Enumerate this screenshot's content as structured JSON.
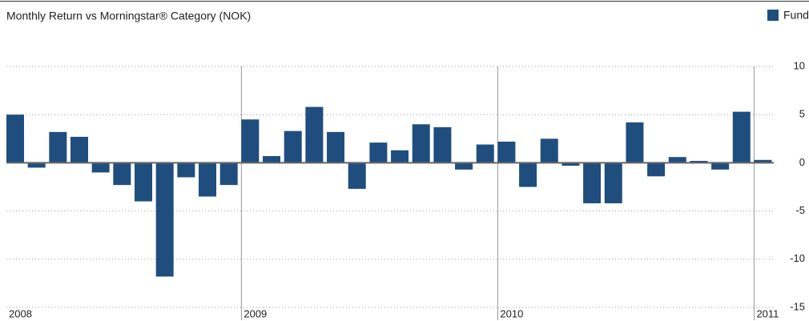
{
  "chart_data": {
    "type": "bar",
    "title": "Monthly Return  vs  Morningstar® Category (NOK)",
    "series": [
      {
        "name": "Fund",
        "color": "#1f4e7e",
        "values": [
          5.0,
          -0.5,
          3.2,
          2.7,
          -1.0,
          -2.3,
          -4.0,
          -11.8,
          -1.5,
          -3.5,
          -2.3,
          4.5,
          0.7,
          3.3,
          5.8,
          3.2,
          -2.7,
          2.1,
          1.3,
          4.0,
          3.7,
          -0.7,
          1.9,
          2.2,
          -2.5,
          2.5,
          -0.3,
          -4.2,
          -4.2,
          4.2,
          -1.4,
          0.6,
          0.2,
          -0.7,
          5.3,
          0.3
        ]
      }
    ],
    "categories": [
      "2008",
      null,
      null,
      null,
      null,
      null,
      null,
      null,
      null,
      null,
      null,
      "2009",
      null,
      null,
      null,
      null,
      null,
      null,
      null,
      null,
      null,
      null,
      null,
      "2010",
      null,
      null,
      null,
      null,
      null,
      null,
      null,
      null,
      null,
      null,
      null,
      "2011"
    ],
    "ylim": [
      -15,
      10
    ],
    "yticks": [
      -15,
      -10,
      -5,
      0,
      5,
      10
    ],
    "grid": true,
    "legend": "top-right"
  }
}
